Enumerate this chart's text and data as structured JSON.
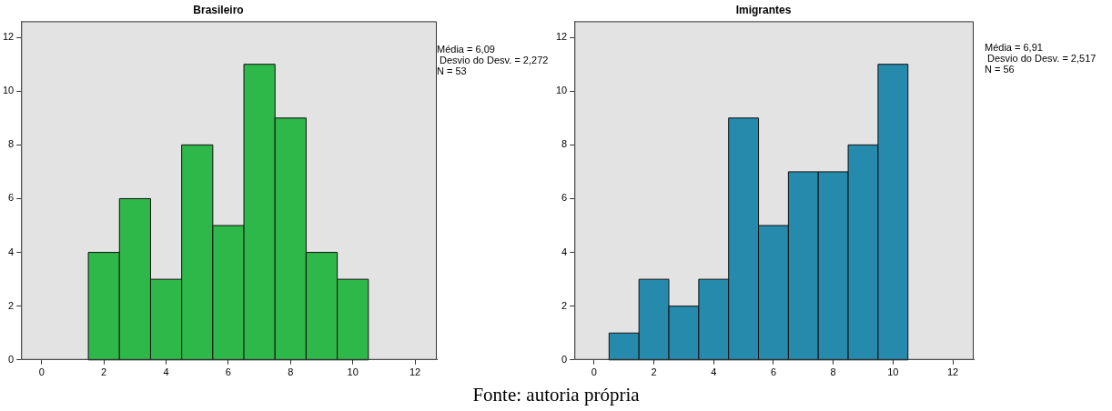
{
  "chart_data": [
    {
      "type": "histogram",
      "title": "Brasileiro",
      "bins": [
        1.5,
        2.5,
        3.5,
        4.5,
        5.5,
        6.5,
        7.5,
        8.5,
        9.5,
        10.5
      ],
      "values": [
        4,
        6,
        3,
        8,
        5,
        11,
        9,
        4,
        3
      ],
      "color": "#2eb84a",
      "xlim": [
        -0.66,
        12.7
      ],
      "xticks": [
        0,
        2,
        4,
        6,
        8,
        10,
        12
      ],
      "ylim": [
        0,
        12.6
      ],
      "yticks": [
        0,
        2,
        4,
        6,
        8,
        10,
        12
      ],
      "grid": false,
      "legend": false,
      "annotations": [
        "Média = 6,09",
        " Desvio do Desv. = 2,272",
        "N = 53",
        "Fonte: autoria própria"
      ]
    },
    {
      "type": "histogram",
      "title": "Imigrantes",
      "bins": [
        0.5,
        1.5,
        2.5,
        3.5,
        4.5,
        5.5,
        6.5,
        7.5,
        8.5,
        9.5,
        10.5
      ],
      "values": [
        1,
        3,
        2,
        3,
        9,
        5,
        7,
        7,
        8,
        11
      ],
      "color": "#268aad",
      "xlim": [
        -0.66,
        12.7
      ],
      "xticks": [
        0,
        2,
        4,
        6,
        8,
        10,
        12
      ],
      "ylim": [
        0,
        12.6
      ],
      "yticks": [
        0,
        2,
        4,
        6,
        8,
        10,
        12
      ],
      "grid": false,
      "legend": false,
      "annotations": [
        "Média = 6,91",
        " Desvio do Desv. = 2,517",
        "N = 56"
      ]
    }
  ]
}
